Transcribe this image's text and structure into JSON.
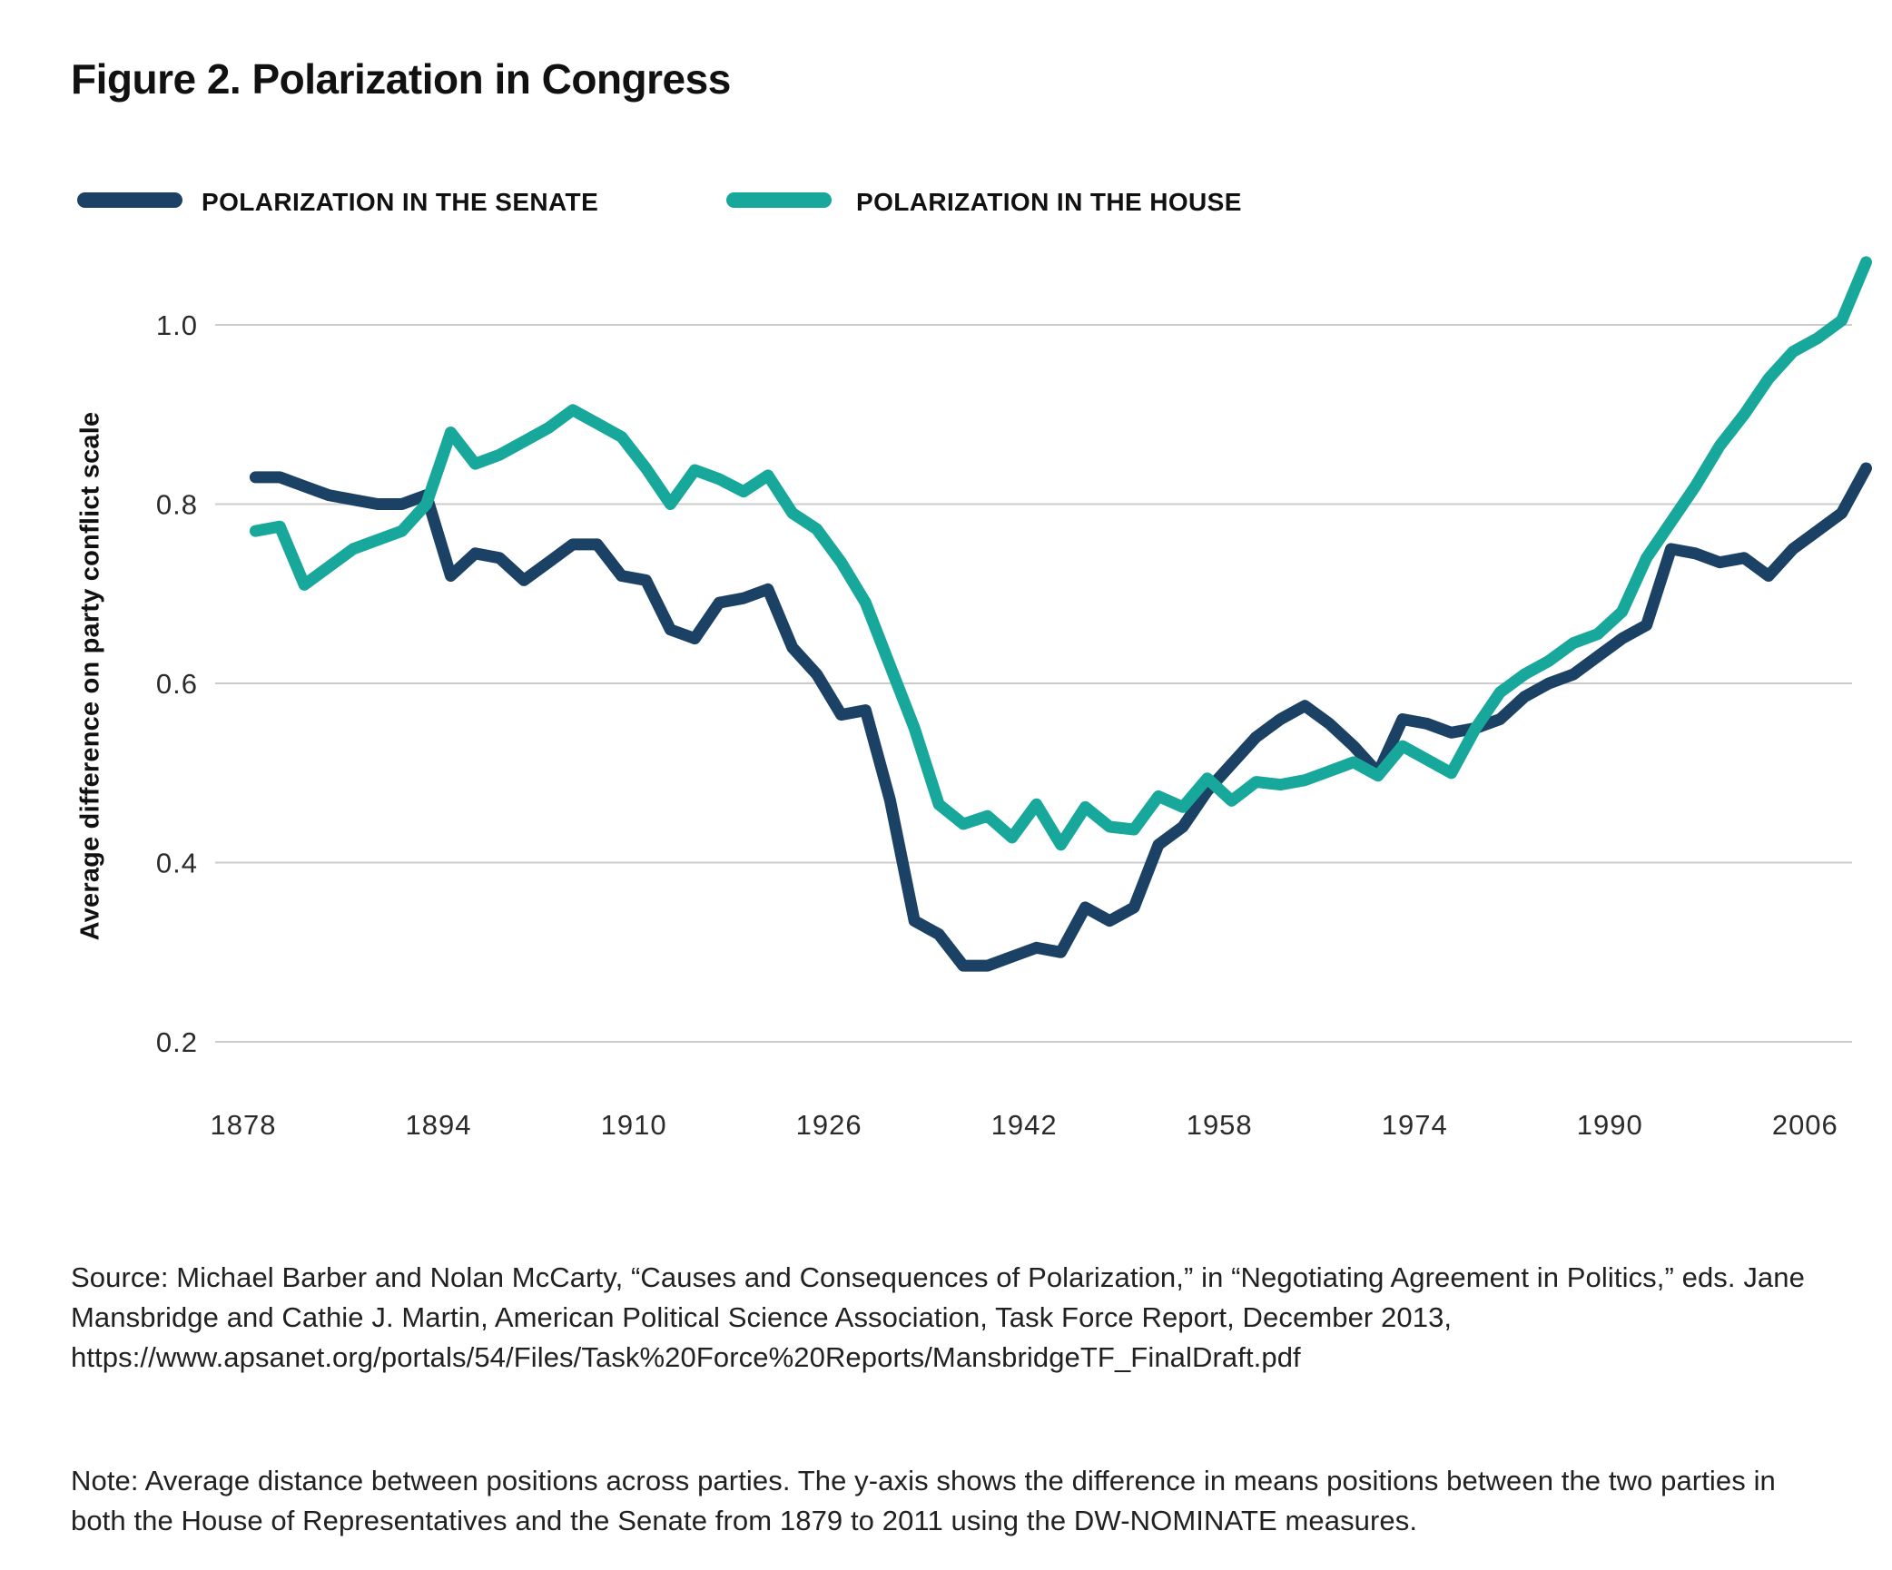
{
  "figure": {
    "title": "Figure 2. Polarization in Congress",
    "source": "Source: Michael Barber and Nolan McCarty, “Causes and Consequences of Polarization,” in “Negotiating Agreement in Politics,” eds. Jane Mansbridge and Cathie J. Martin, American Political Science Association, Task Force Report, December 2013, https://www.apsanet.org/portals/54/Files/Task%20Force%20Reports/MansbridgeTF_FinalDraft.pdf",
    "note": "Note: Average distance between positions across parties. The y-axis shows the difference in means positions between the two parties in both the House of Representatives and the Senate from 1879 to 2011 using the DW-NOMINATE measures."
  },
  "chart_data": {
    "type": "line",
    "title": "Figure 2. Polarization in Congress",
    "xlabel": "",
    "ylabel": "Average difference on party conflict scale",
    "x_start_year": 1879,
    "x_step_years": 2,
    "x_end_year": 2011,
    "x_tick_labels": [
      "1878",
      "1894",
      "1910",
      "1926",
      "1942",
      "1958",
      "1974",
      "1990",
      "2006"
    ],
    "y_tick_labels": [
      "1.0",
      "0.8",
      "0.6",
      "0.4",
      "0.2"
    ],
    "ylim": [
      0.13,
      1.12
    ],
    "grid": "horizontal gridlines only",
    "legend_position": "top-left horizontal",
    "background": "#ffffff",
    "gridline_color": "#cccccc",
    "series": [
      {
        "name": "POLARIZATION IN THE SENATE",
        "color": "#1b4164",
        "values": [
          0.83,
          0.83,
          0.82,
          0.81,
          0.805,
          0.8,
          0.8,
          0.81,
          0.72,
          0.745,
          0.74,
          0.715,
          0.735,
          0.755,
          0.755,
          0.72,
          0.715,
          0.66,
          0.65,
          0.69,
          0.695,
          0.705,
          0.64,
          0.61,
          0.565,
          0.57,
          0.47,
          0.335,
          0.32,
          0.285,
          0.285,
          0.295,
          0.305,
          0.3,
          0.35,
          0.335,
          0.35,
          0.42,
          0.44,
          0.48,
          0.51,
          0.54,
          0.56,
          0.575,
          0.555,
          0.53,
          0.5,
          0.56,
          0.555,
          0.545,
          0.55,
          0.56,
          0.585,
          0.6,
          0.61,
          0.63,
          0.65,
          0.665,
          0.75,
          0.745,
          0.735,
          0.74,
          0.72,
          0.75,
          0.77,
          0.79,
          0.84
        ]
      },
      {
        "name": "POLARIZATION IN THE HOUSE",
        "color": "#18a89b",
        "values": [
          0.77,
          0.775,
          0.71,
          0.73,
          0.75,
          0.76,
          0.77,
          0.8,
          0.88,
          0.845,
          0.855,
          0.87,
          0.885,
          0.905,
          0.89,
          0.875,
          0.84,
          0.8,
          0.838,
          0.828,
          0.814,
          0.832,
          0.79,
          0.772,
          0.735,
          0.69,
          0.62,
          0.55,
          0.465,
          0.443,
          0.452,
          0.428,
          0.465,
          0.42,
          0.462,
          0.44,
          0.437,
          0.474,
          0.462,
          0.494,
          0.469,
          0.49,
          0.487,
          0.492,
          0.502,
          0.512,
          0.497,
          0.53,
          0.515,
          0.5,
          0.55,
          0.59,
          0.61,
          0.625,
          0.645,
          0.655,
          0.68,
          0.74,
          0.78,
          0.82,
          0.865,
          0.9,
          0.94,
          0.97,
          0.985,
          1.005,
          1.07
        ]
      }
    ]
  }
}
